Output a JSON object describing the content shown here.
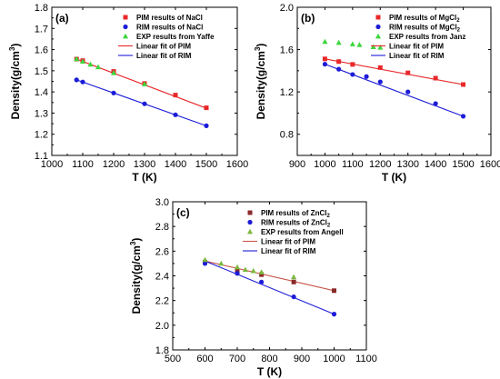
{
  "chart_data": [
    {
      "type": "scatter",
      "panel_label": "(a)",
      "xlabel": "T (K)",
      "ylabel_main": "Density(g/cm",
      "ylabel_sup": "3",
      "ylabel_tail": ")",
      "xlim": [
        1000,
        1600
      ],
      "ylim": [
        1.1,
        1.8
      ],
      "xticks": [
        1000,
        1100,
        1200,
        1300,
        1400,
        1500,
        1600
      ],
      "yticks": [
        1.1,
        1.2,
        1.3,
        1.4,
        1.5,
        1.6,
        1.7,
        1.8
      ],
      "ytick_decimals": 1,
      "legend_position": "top-right",
      "series": [
        {
          "name": "PIM results of NaCl",
          "name_sub": "",
          "marker": "square",
          "color": "#e8282a",
          "points": [
            [
              1080,
              1.555
            ],
            [
              1100,
              1.548
            ],
            [
              1200,
              1.497
            ],
            [
              1300,
              1.44
            ],
            [
              1400,
              1.385
            ],
            [
              1500,
              1.325
            ]
          ]
        },
        {
          "name": "RIM results of NaCl",
          "name_sub": "",
          "marker": "circle",
          "color": "#1c1cd8",
          "points": [
            [
              1080,
              1.457
            ],
            [
              1100,
              1.447
            ],
            [
              1200,
              1.395
            ],
            [
              1300,
              1.344
            ],
            [
              1400,
              1.292
            ],
            [
              1500,
              1.24
            ]
          ]
        },
        {
          "name": "EXP results from Yaffe",
          "name_sub": "",
          "marker": "triangle",
          "color": "#3cd63c",
          "points": [
            [
              1080,
              1.556
            ],
            [
              1100,
              1.544
            ],
            [
              1125,
              1.53
            ],
            [
              1150,
              1.518
            ],
            [
              1200,
              1.49
            ],
            [
              1300,
              1.437
            ]
          ]
        },
        {
          "name": "Linear fit of PIM",
          "name_sub": "",
          "marker": "line",
          "color": "#e8282a",
          "points": [
            [
              1080,
              1.555
            ],
            [
              1500,
              1.323
            ]
          ]
        },
        {
          "name": "Linear fit of RIM",
          "name_sub": "",
          "marker": "line",
          "color": "#1c1cd8",
          "points": [
            [
              1080,
              1.457
            ],
            [
              1500,
              1.24
            ]
          ]
        }
      ]
    },
    {
      "type": "scatter",
      "panel_label": "(b)",
      "xlabel": "T (K)",
      "ylabel_main": "Density(g/cm",
      "ylabel_sup": "3",
      "ylabel_tail": ")",
      "xlim": [
        900,
        1600
      ],
      "ylim": [
        0.6,
        2.0
      ],
      "xticks": [
        900,
        1000,
        1100,
        1200,
        1300,
        1400,
        1500,
        1600
      ],
      "yticks": [
        0.8,
        1.2,
        1.6,
        2.0
      ],
      "ytick_decimals": 1,
      "legend_position": "top-right",
      "series": [
        {
          "name": "PIM results of MgCl",
          "name_sub": "2",
          "marker": "square",
          "color": "#e8282a",
          "points": [
            [
              1000,
              1.512
            ],
            [
              1050,
              1.487
            ],
            [
              1100,
              1.46
            ],
            [
              1200,
              1.43
            ],
            [
              1300,
              1.38
            ],
            [
              1400,
              1.33
            ],
            [
              1500,
              1.27
            ]
          ]
        },
        {
          "name": "RIM results of MgCl",
          "name_sub": "2",
          "marker": "circle",
          "color": "#1c1cd8",
          "points": [
            [
              1000,
              1.462
            ],
            [
              1050,
              1.415
            ],
            [
              1100,
              1.365
            ],
            [
              1150,
              1.345
            ],
            [
              1200,
              1.295
            ],
            [
              1300,
              1.2
            ],
            [
              1400,
              1.09
            ],
            [
              1500,
              0.97
            ]
          ]
        },
        {
          "name": "EXP results from Janz",
          "name_sub": "",
          "marker": "triangle",
          "color": "#3cd63c",
          "points": [
            [
              1000,
              1.675
            ],
            [
              1050,
              1.665
            ],
            [
              1100,
              1.652
            ],
            [
              1125,
              1.645
            ],
            [
              1175,
              1.625
            ],
            [
              1200,
              1.62
            ]
          ]
        },
        {
          "name": "Linear fit of PIM",
          "name_sub": "",
          "marker": "line",
          "color": "#e8282a",
          "points": [
            [
              1000,
              1.512
            ],
            [
              1500,
              1.27
            ]
          ]
        },
        {
          "name": "Linear fit of RIM",
          "name_sub": "",
          "marker": "line",
          "color": "#1c1cd8",
          "points": [
            [
              1000,
              1.462
            ],
            [
              1500,
              0.97
            ]
          ]
        }
      ]
    },
    {
      "type": "scatter",
      "panel_label": "(c)",
      "xlabel": "T (K)",
      "ylabel_main": "Density(g/cm",
      "ylabel_sup": "3",
      "ylabel_tail": ")",
      "xlim": [
        500,
        1100
      ],
      "ylim": [
        1.8,
        3.0
      ],
      "xticks": [
        500,
        600,
        700,
        800,
        900,
        1000,
        1100
      ],
      "yticks": [
        1.8,
        2.0,
        2.2,
        2.4,
        2.6,
        2.8,
        3.0
      ],
      "ytick_decimals": 1,
      "legend_position": "top-right",
      "series": [
        {
          "name": "PIM results of ZnCl",
          "name_sub": "2",
          "marker": "square",
          "color": "#8b2a2a",
          "points": [
            [
              600,
              2.51
            ],
            [
              700,
              2.44
            ],
            [
              775,
              2.41
            ],
            [
              875,
              2.35
            ],
            [
              1000,
              2.28
            ]
          ]
        },
        {
          "name": "RIM results of ZnCl",
          "name_sub": "2",
          "marker": "circle",
          "color": "#1c1cd8",
          "points": [
            [
              600,
              2.5
            ],
            [
              700,
              2.42
            ],
            [
              775,
              2.35
            ],
            [
              875,
              2.23
            ],
            [
              1000,
              2.09
            ]
          ]
        },
        {
          "name": "EXP results from Angell",
          "name_sub": "",
          "marker": "triangle",
          "color": "#7ab83c",
          "points": [
            [
              600,
              2.53
            ],
            [
              650,
              2.5
            ],
            [
              700,
              2.47
            ],
            [
              725,
              2.45
            ],
            [
              750,
              2.44
            ],
            [
              775,
              2.43
            ],
            [
              875,
              2.39
            ]
          ]
        },
        {
          "name": "Linear fit of PIM",
          "name_sub": "",
          "marker": "line",
          "color": "#c9554a",
          "points": [
            [
              600,
              2.52
            ],
            [
              1000,
              2.28
            ]
          ]
        },
        {
          "name": "Linear fit of RIM",
          "name_sub": "",
          "marker": "line",
          "color": "#1c1cd8",
          "points": [
            [
              600,
              2.52
            ],
            [
              1000,
              2.09
            ]
          ]
        }
      ]
    }
  ]
}
